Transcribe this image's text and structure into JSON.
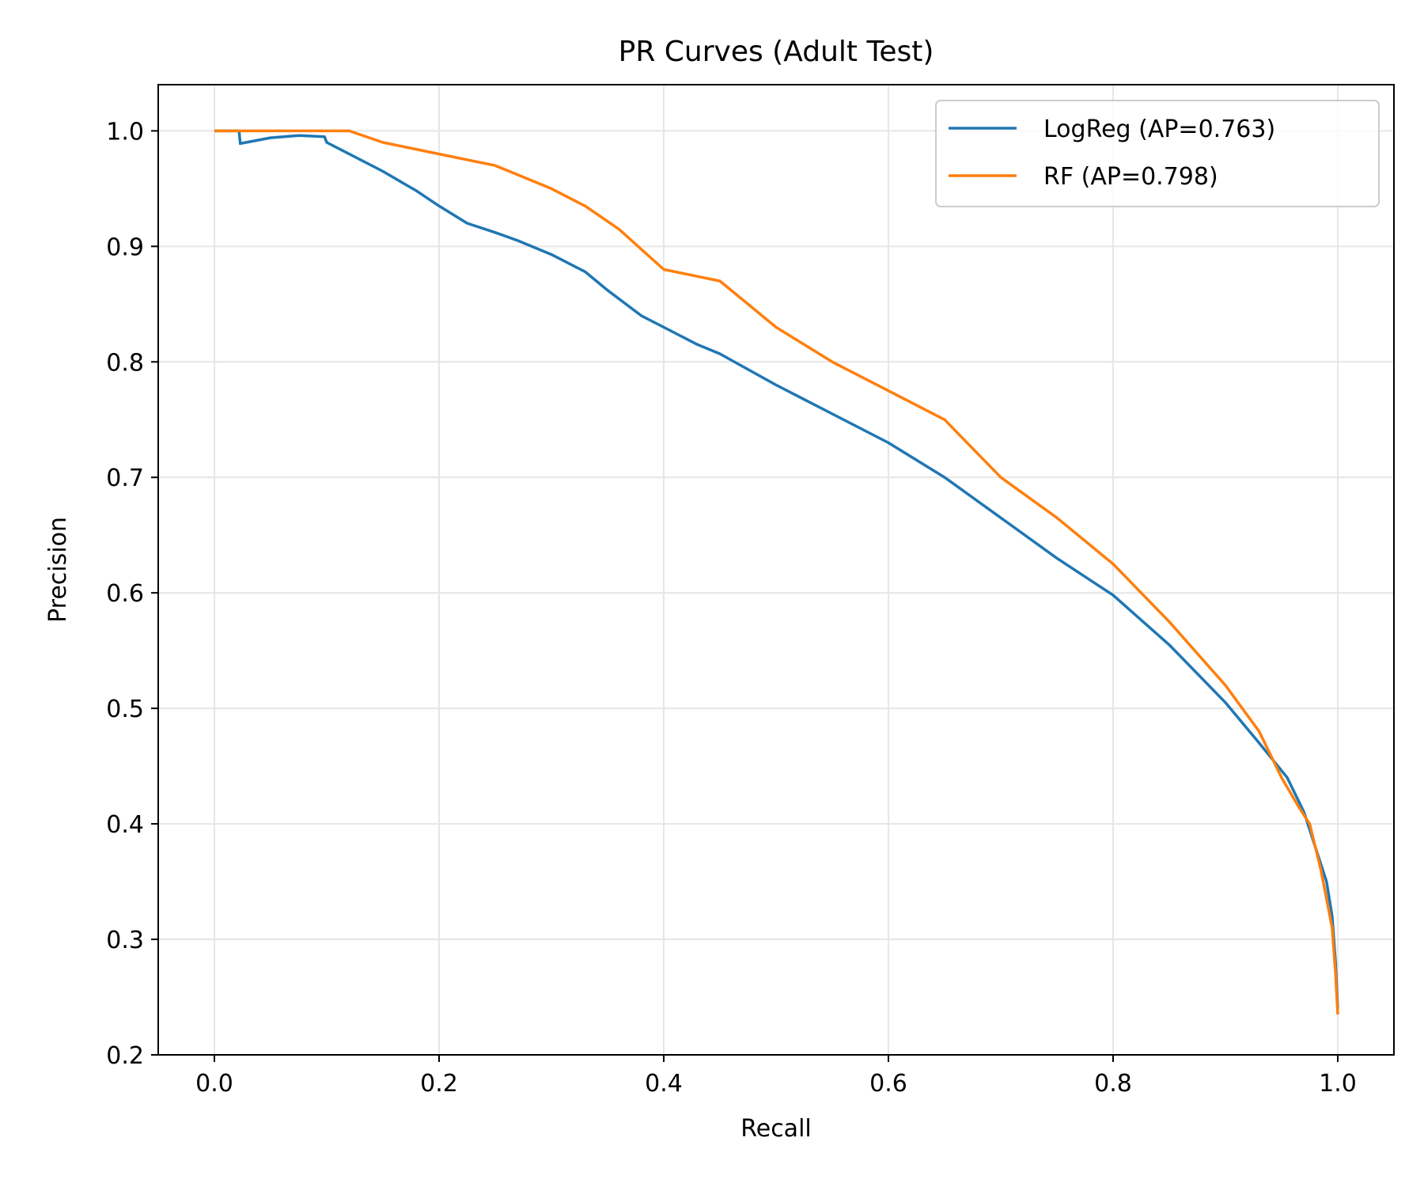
{
  "chart_data": {
    "type": "line",
    "title": "PR Curves (Adult Test)",
    "xlabel": "Recall",
    "ylabel": "Precision",
    "xlim": [
      -0.05,
      1.05
    ],
    "ylim": [
      0.2,
      1.04
    ],
    "xticks": [
      0.0,
      0.2,
      0.4,
      0.6,
      0.8,
      1.0
    ],
    "xtick_labels": [
      "0.0",
      "0.2",
      "0.4",
      "0.6",
      "0.8",
      "1.0"
    ],
    "yticks": [
      0.2,
      0.3,
      0.4,
      0.5,
      0.6,
      0.7,
      0.8,
      0.9,
      1.0
    ],
    "ytick_labels": [
      "0.2",
      "0.3",
      "0.4",
      "0.5",
      "0.6",
      "0.7",
      "0.8",
      "0.9",
      "1.0"
    ],
    "grid": true,
    "legend_position": "top-right",
    "series": [
      {
        "name": "LogReg (AP=0.763)",
        "color": "#1f77b4",
        "x": [
          0.0,
          0.022,
          0.023,
          0.05,
          0.075,
          0.098,
          0.1,
          0.12,
          0.15,
          0.18,
          0.2,
          0.225,
          0.25,
          0.27,
          0.3,
          0.33,
          0.35,
          0.38,
          0.4,
          0.43,
          0.45,
          0.5,
          0.55,
          0.6,
          0.65,
          0.7,
          0.75,
          0.8,
          0.85,
          0.9,
          0.93,
          0.955,
          0.97,
          0.98,
          0.99,
          0.995,
          0.998,
          1.0
        ],
        "y": [
          1.0,
          1.0,
          0.989,
          0.994,
          0.996,
          0.995,
          0.99,
          0.98,
          0.965,
          0.948,
          0.935,
          0.92,
          0.912,
          0.905,
          0.893,
          0.878,
          0.862,
          0.84,
          0.83,
          0.815,
          0.807,
          0.78,
          0.755,
          0.73,
          0.7,
          0.665,
          0.63,
          0.598,
          0.555,
          0.505,
          0.47,
          0.44,
          0.41,
          0.38,
          0.35,
          0.32,
          0.28,
          0.24
        ]
      },
      {
        "name": "RF (AP=0.798)",
        "color": "#ff7f0e",
        "x": [
          0.0,
          0.12,
          0.15,
          0.2,
          0.25,
          0.3,
          0.33,
          0.36,
          0.4,
          0.45,
          0.5,
          0.55,
          0.6,
          0.65,
          0.7,
          0.75,
          0.8,
          0.85,
          0.9,
          0.93,
          0.95,
          0.965,
          0.975,
          0.985,
          0.995,
          0.998,
          1.0
        ],
        "y": [
          1.0,
          1.0,
          0.99,
          0.98,
          0.97,
          0.95,
          0.935,
          0.915,
          0.88,
          0.87,
          0.83,
          0.8,
          0.775,
          0.75,
          0.7,
          0.665,
          0.625,
          0.575,
          0.52,
          0.48,
          0.44,
          0.415,
          0.4,
          0.36,
          0.31,
          0.27,
          0.235
        ]
      }
    ]
  }
}
